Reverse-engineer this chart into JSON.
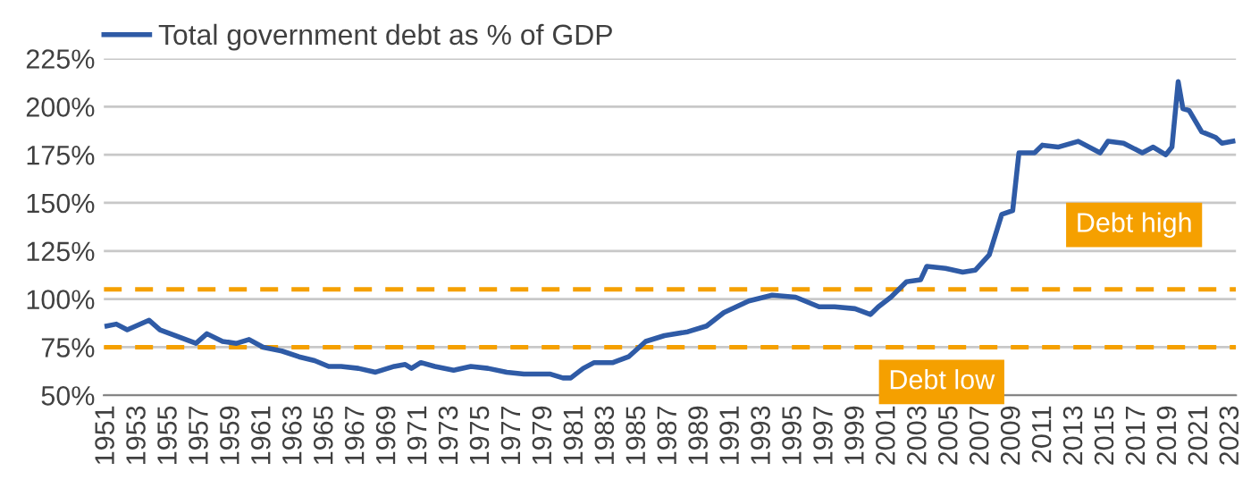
{
  "chart_data": {
    "type": "line",
    "x": [
      1951.0,
      1951.6,
      1952.3,
      1953.7,
      1954.4,
      1955.4,
      1956.7,
      1957.4,
      1958.4,
      1959.3,
      1960.1,
      1961.0,
      1962.2,
      1963.3,
      1964.3,
      1965.2,
      1966.0,
      1967.1,
      1968.2,
      1969.4,
      1970.1,
      1970.5,
      1971.1,
      1972.0,
      1973.2,
      1974.3,
      1975.4,
      1976.6,
      1977.7,
      1978.8,
      1979.4,
      1980.2,
      1980.7,
      1981.5,
      1982.2,
      1983.4,
      1984.4,
      1985.5,
      1986.7,
      1988.2,
      1989.4,
      1990.5,
      1992.1,
      1993.6,
      1995.1,
      1996.6,
      1997.6,
      1998.9,
      1999.9,
      2000.4,
      2001.2,
      2002.2,
      2003.1,
      2003.5,
      2004.7,
      2005.8,
      2006.6,
      2007.5,
      2008.3,
      2009.0,
      2009.4,
      2010.4,
      2010.9,
      2011.9,
      2013.2,
      2014.6,
      2015.1,
      2016.1,
      2017.3,
      2018.0,
      2018.8,
      2019.2,
      2019.6,
      2019.9,
      2020.3,
      2021.1,
      2022.0,
      2022.4,
      2023.1
    ],
    "series": [
      {
        "name": "Total government debt as % of GDP",
        "color": "#2f5ba6",
        "values": [
          86,
          87,
          84,
          89,
          84,
          81,
          77,
          82,
          78,
          77,
          79,
          75,
          73,
          70,
          68,
          65,
          65,
          64,
          62,
          65,
          66,
          64,
          67,
          65,
          63,
          65,
          64,
          62,
          61,
          61,
          61,
          59,
          59,
          64,
          67,
          67,
          70,
          78,
          81,
          83,
          86,
          93,
          99,
          102,
          101,
          96,
          96,
          95,
          92,
          96,
          101,
          109,
          110,
          117,
          116,
          114,
          115,
          123,
          144,
          146,
          176,
          176,
          180,
          179,
          182,
          176,
          182,
          181,
          176,
          179,
          175,
          179,
          213,
          199,
          198,
          187,
          184,
          181,
          182
        ]
      }
    ],
    "xlim": [
      1950.8,
      2023.3
    ],
    "xticks": [
      1951,
      1953,
      1955,
      1957,
      1959,
      1961,
      1963,
      1965,
      1967,
      1969,
      1971,
      1973,
      1975,
      1977,
      1979,
      1981,
      1983,
      1985,
      1987,
      1989,
      1991,
      1993,
      1995,
      1997,
      1999,
      2001,
      2003,
      2005,
      2007,
      2009,
      2011,
      2013,
      2015,
      2017,
      2019,
      2021,
      2023
    ],
    "ylim": [
      50,
      225
    ],
    "yticks": [
      {
        "value": 50,
        "label": "50%"
      },
      {
        "value": 75,
        "label": "75%"
      },
      {
        "value": 100,
        "label": "100%"
      },
      {
        "value": 125,
        "label": "125%"
      },
      {
        "value": 150,
        "label": "150%"
      },
      {
        "value": 175,
        "label": "175%"
      },
      {
        "value": 200,
        "label": "200%"
      },
      {
        "value": 225,
        "label": "225%"
      }
    ],
    "ref_lines": [
      {
        "axis": "y",
        "value": 105,
        "label": "Debt high",
        "color": "#f5a000",
        "line_style": "dashed"
      },
      {
        "axis": "y",
        "value": 75,
        "label": "Debt low",
        "color": "#f5a000",
        "line_style": "dashed"
      }
    ],
    "grid": "y",
    "legend": "top left",
    "line_style": "solid",
    "marker": "none"
  }
}
